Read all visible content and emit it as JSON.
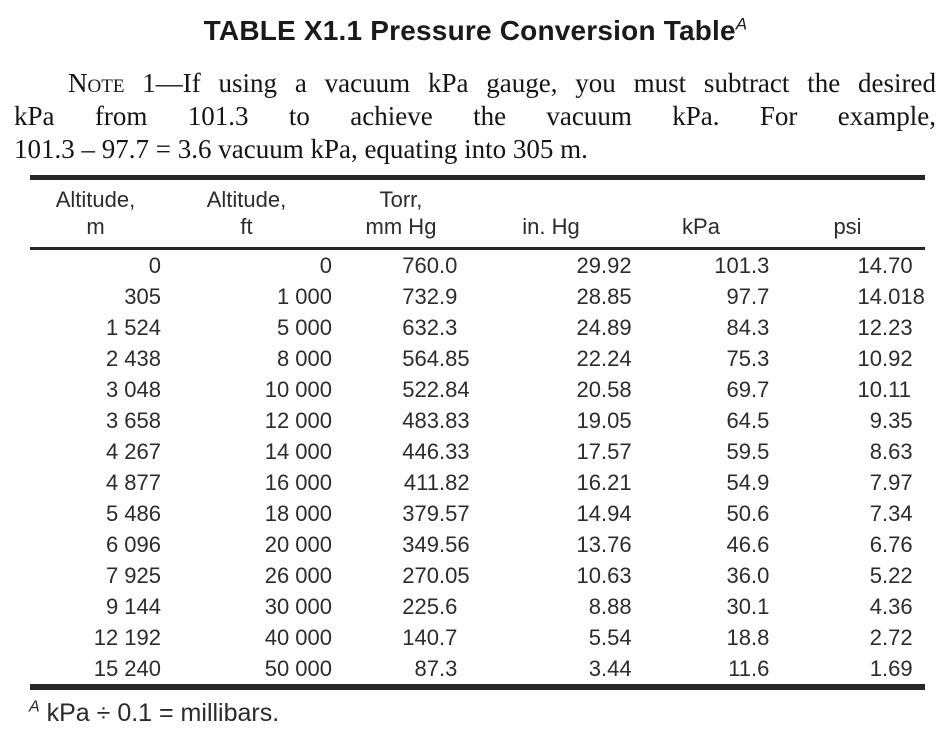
{
  "document": {
    "title": {
      "text": "TABLE X1.1 Pressure Conversion Table",
      "footnote_ref": "A"
    },
    "note": {
      "label": "Note 1",
      "lines": [
        "—If using a vacuum kPa gauge, you must subtract the desired",
        "kPa from 101.3 to achieve the vacuum kPa. For example,",
        "101.3 – 97.7 = 3.6 vacuum kPa, equating into 305 m."
      ]
    },
    "footnote": {
      "marker": "A",
      "text": "kPa ÷ 0.1 = millibars."
    }
  },
  "table": {
    "headers": [
      {
        "line1": "Altitude,",
        "line2": "m"
      },
      {
        "line1": "Altitude,",
        "line2": "ft"
      },
      {
        "line1": "Torr,",
        "line2": "mm Hg"
      },
      {
        "line1": "",
        "line2": "in. Hg"
      },
      {
        "line1": "",
        "line2": "kPa"
      },
      {
        "line1": "",
        "line2": "psi"
      }
    ],
    "rows": [
      [
        "0",
        "0",
        "760.0",
        "29.92",
        "101.3",
        "14.70"
      ],
      [
        "305",
        "1 000",
        "732.9",
        "28.85",
        "97.7",
        "14.018"
      ],
      [
        "1 524",
        "5 000",
        "632.3",
        "24.89",
        "84.3",
        "12.23"
      ],
      [
        "2 438",
        "8 000",
        "564.85",
        "22.24",
        "75.3",
        "10.92"
      ],
      [
        "3 048",
        "10 000",
        "522.84",
        "20.58",
        "69.7",
        "10.11"
      ],
      [
        "3 658",
        "12 000",
        "483.83",
        "19.05",
        "64.5",
        "9.35"
      ],
      [
        "4 267",
        "14 000",
        "446.33",
        "17.57",
        "59.5",
        "8.63"
      ],
      [
        "4 877",
        "16 000",
        "411.82",
        "16.21",
        "54.9",
        "7.97"
      ],
      [
        "5 486",
        "18 000",
        "379.57",
        "14.94",
        "50.6",
        "7.34"
      ],
      [
        "6 096",
        "20 000",
        "349.56",
        "13.76",
        "46.6",
        "6.76"
      ],
      [
        "7 925",
        "26 000",
        "270.05",
        "10.63",
        "36.0",
        "5.22"
      ],
      [
        "9 144",
        "30 000",
        "225.6",
        "8.88",
        "30.1",
        "4.36"
      ],
      [
        "12 192",
        "40 000",
        "140.7",
        "5.54",
        "18.8",
        "2.72"
      ],
      [
        "15 240",
        "50 000",
        "87.3",
        "3.44",
        "11.6",
        "1.69"
      ]
    ]
  }
}
